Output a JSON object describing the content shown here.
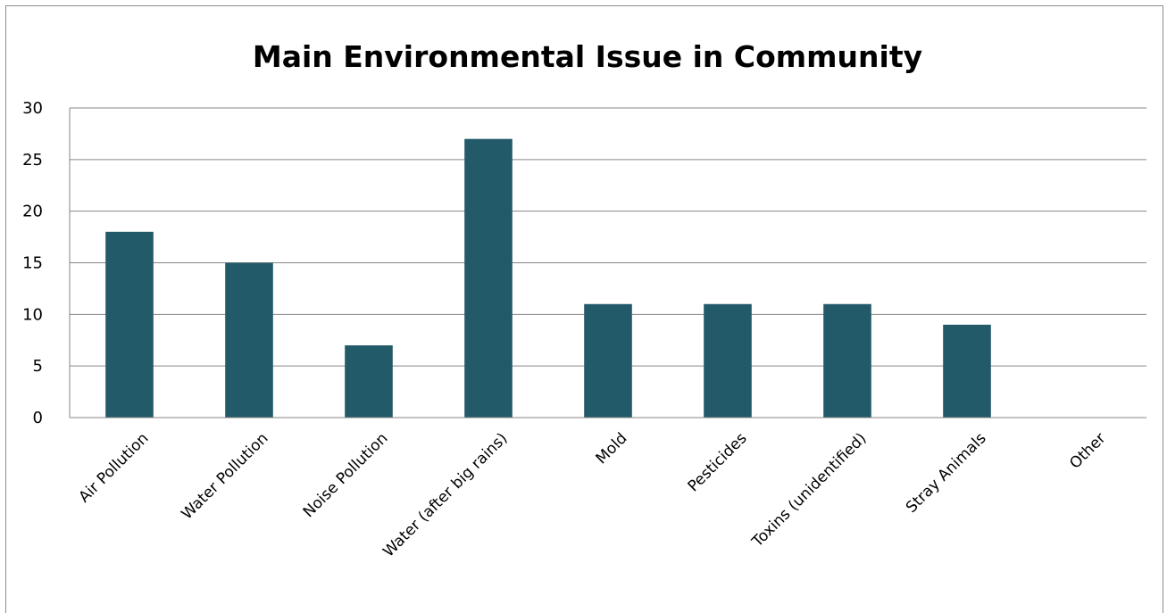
{
  "chart_data": {
    "type": "bar",
    "title": "Main Environmental Issue in Community",
    "xlabel": "",
    "ylabel": "",
    "categories": [
      "Air Pollution",
      "Water Pollution",
      "Noise Pollution",
      "Water (after big rains)",
      "Mold",
      "Pesticides",
      "Toxins (unidentified)",
      "Stray Animals",
      "Other"
    ],
    "values": [
      18,
      15,
      7,
      27,
      11,
      11,
      11,
      9,
      0
    ],
    "ylim": [
      0,
      30
    ],
    "yticks": [
      0,
      5,
      10,
      15,
      20,
      25,
      30
    ],
    "grid": true,
    "legend": "none",
    "colors": {
      "bar": "#235A69",
      "grid": "#868686",
      "frame": "#8C8C8C"
    }
  }
}
